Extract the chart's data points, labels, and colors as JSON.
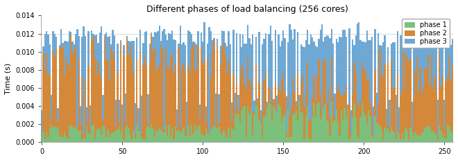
{
  "title": "Different phases of load balancing (256 cores)",
  "ylabel": "Time (s)",
  "ylim": [
    0,
    0.014
  ],
  "yticks": [
    0,
    0.002,
    0.004,
    0.006,
    0.008,
    0.01,
    0.012,
    0.014
  ],
  "xticks": [
    0,
    50,
    100,
    150,
    200,
    250
  ],
  "n_cores": 256,
  "color_phase1": "#7dbf7d",
  "color_phase2": "#d4883a",
  "color_phase3": "#6fa8d4",
  "legend_labels": [
    "phase 1",
    "phase 2",
    "phase 3"
  ],
  "figsize": [
    6.6,
    2.31
  ],
  "dpi": 100,
  "title_fontsize": 9,
  "axis_fontsize": 8,
  "tick_fontsize": 7,
  "legend_fontsize": 7,
  "background_color": "#ffffff",
  "grid_color": "#cccccc"
}
